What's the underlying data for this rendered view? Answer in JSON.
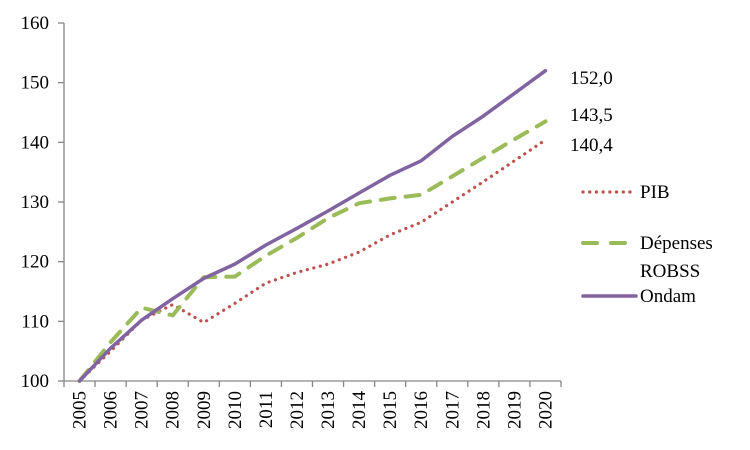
{
  "chart_data": {
    "type": "line",
    "title": "",
    "xlabel": "",
    "ylabel": "",
    "x": [
      "2005",
      "2006",
      "2007",
      "2008",
      "2009",
      "2010",
      "2011",
      "2012",
      "2013",
      "2014",
      "2015",
      "2016",
      "2017",
      "2018",
      "2019",
      "2020"
    ],
    "ylim": [
      100,
      160
    ],
    "yticks": [
      100,
      110,
      120,
      130,
      140,
      150,
      160
    ],
    "ytick_labels": [
      "100",
      "110",
      "120",
      "130",
      "140",
      "150",
      "160"
    ],
    "grid": false,
    "legend_position": "right",
    "series": [
      {
        "name": "PIB",
        "legend_label_lines": [
          "PIB"
        ],
        "color": "#C0504D",
        "style": "dotted",
        "values": [
          100,
          105.0,
          110.2,
          112.8,
          109.8,
          113.0,
          116.4,
          118.2,
          119.6,
          121.6,
          124.5,
          126.6,
          130.0,
          133.4,
          136.9,
          140.4
        ],
        "end_label": "140,4"
      },
      {
        "name": "Dépenses ROBSS",
        "legend_label_lines": [
          "Dépenses",
          "ROBSS"
        ],
        "color": "#9BBB59",
        "style": "dashed",
        "values": [
          100,
          106.5,
          112.3,
          111.0,
          117.4,
          117.5,
          121.0,
          124.0,
          127.3,
          129.8,
          130.6,
          131.2,
          134.3,
          137.4,
          140.5,
          143.5
        ],
        "end_label": "143,5"
      },
      {
        "name": "Ondam",
        "legend_label_lines": [
          "Ondam"
        ],
        "color": "#8064A2",
        "style": "solid",
        "values": [
          100,
          105.5,
          110.2,
          113.8,
          117.2,
          119.6,
          122.8,
          125.6,
          128.5,
          131.5,
          134.5,
          136.9,
          141.0,
          144.4,
          148.2,
          152.0
        ],
        "end_label": "152,0"
      }
    ]
  }
}
